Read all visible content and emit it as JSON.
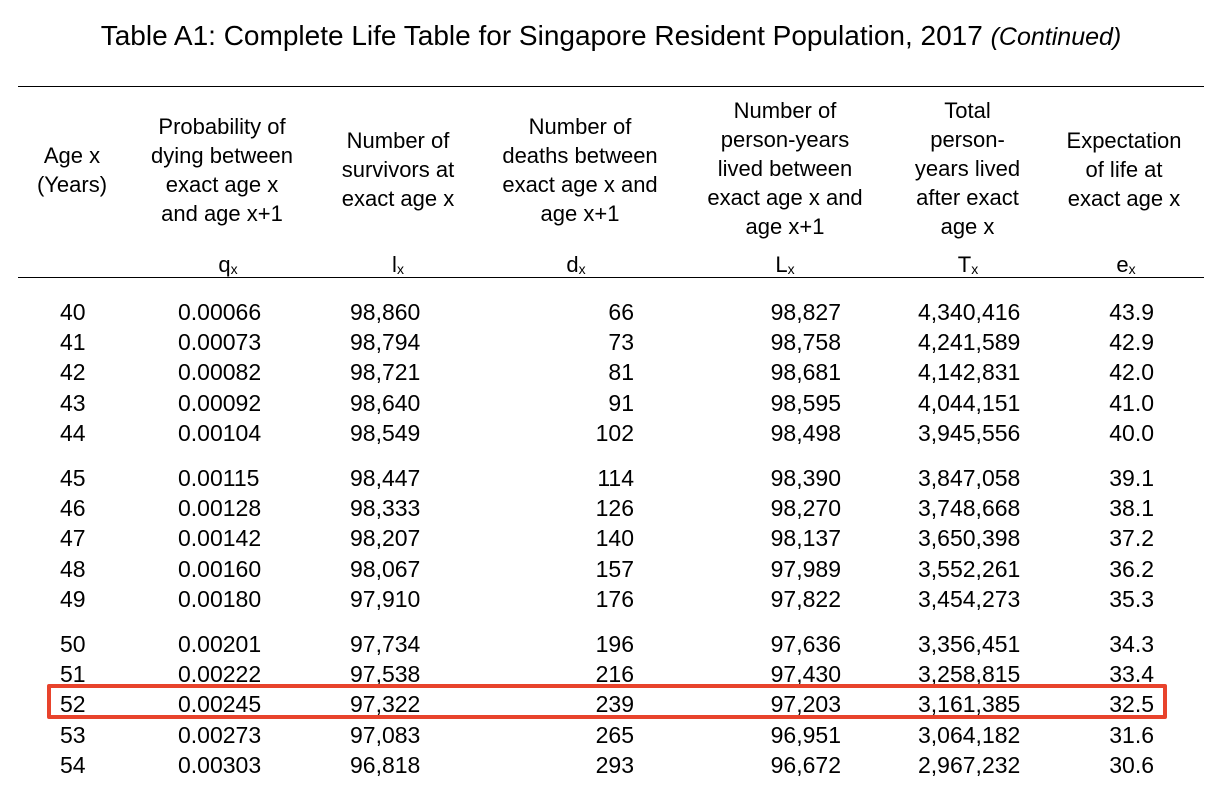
{
  "title": {
    "main": "Table A1: Complete Life Table for Singapore Resident Population, 2017",
    "continued": "(Continued)"
  },
  "headers": {
    "age": [
      "Age x",
      "(Years)"
    ],
    "q": [
      "Probability of",
      "dying between",
      "exact age x",
      "and age x+1"
    ],
    "l": [
      "Number of",
      "survivors at",
      "exact age x"
    ],
    "d": [
      "Number of",
      "deaths between",
      "exact age x and",
      "age x+1"
    ],
    "L": [
      "Number of",
      "person-years",
      "lived between",
      "exact age x and",
      "age x+1"
    ],
    "T": [
      "Total",
      "person-",
      "years lived",
      "after exact",
      "age x"
    ],
    "e": [
      "Expectation",
      "of life at",
      "exact age x"
    ]
  },
  "symbols": {
    "q": {
      "base": "q",
      "sub": "x"
    },
    "l": {
      "base": "l",
      "sub": "x"
    },
    "d": {
      "base": "d",
      "sub": "x"
    },
    "L": {
      "base": "L",
      "sub": "x"
    },
    "T": {
      "base": "T",
      "sub": "x"
    },
    "e": {
      "base": "e",
      "sub": "x"
    }
  },
  "rows": [
    {
      "age": "40",
      "q": "0.00066",
      "l": "98,860",
      "d": "66",
      "L": "98,827",
      "T": "4,340,416",
      "e": "43.9"
    },
    {
      "age": "41",
      "q": "0.00073",
      "l": "98,794",
      "d": "73",
      "L": "98,758",
      "T": "4,241,589",
      "e": "42.9"
    },
    {
      "age": "42",
      "q": "0.00082",
      "l": "98,721",
      "d": "81",
      "L": "98,681",
      "T": "4,142,831",
      "e": "42.0"
    },
    {
      "age": "43",
      "q": "0.00092",
      "l": "98,640",
      "d": "91",
      "L": "98,595",
      "T": "4,044,151",
      "e": "41.0"
    },
    {
      "age": "44",
      "q": "0.00104",
      "l": "98,549",
      "d": "102",
      "L": "98,498",
      "T": "3,945,556",
      "e": "40.0"
    },
    {
      "age": "45",
      "q": "0.00115",
      "l": "98,447",
      "d": "114",
      "L": "98,390",
      "T": "3,847,058",
      "e": "39.1"
    },
    {
      "age": "46",
      "q": "0.00128",
      "l": "98,333",
      "d": "126",
      "L": "98,270",
      "T": "3,748,668",
      "e": "38.1"
    },
    {
      "age": "47",
      "q": "0.00142",
      "l": "98,207",
      "d": "140",
      "L": "98,137",
      "T": "3,650,398",
      "e": "37.2"
    },
    {
      "age": "48",
      "q": "0.00160",
      "l": "98,067",
      "d": "157",
      "L": "97,989",
      "T": "3,552,261",
      "e": "36.2"
    },
    {
      "age": "49",
      "q": "0.00180",
      "l": "97,910",
      "d": "176",
      "L": "97,822",
      "T": "3,454,273",
      "e": "35.3"
    },
    {
      "age": "50",
      "q": "0.00201",
      "l": "97,734",
      "d": "196",
      "L": "97,636",
      "T": "3,356,451",
      "e": "34.3"
    },
    {
      "age": "51",
      "q": "0.00222",
      "l": "97,538",
      "d": "216",
      "L": "97,430",
      "T": "3,258,815",
      "e": "33.4"
    },
    {
      "age": "52",
      "q": "0.00245",
      "l": "97,322",
      "d": "239",
      "L": "97,203",
      "T": "3,161,385",
      "e": "32.5",
      "highlighted": true
    },
    {
      "age": "53",
      "q": "0.00273",
      "l": "97,083",
      "d": "265",
      "L": "96,951",
      "T": "3,064,182",
      "e": "31.6"
    },
    {
      "age": "54",
      "q": "0.00303",
      "l": "96,818",
      "d": "293",
      "L": "96,672",
      "T": "2,967,232",
      "e": "30.6"
    }
  ],
  "colors": {
    "highlight_border": "#e8432c",
    "text": "#000000",
    "background": "#ffffff"
  }
}
